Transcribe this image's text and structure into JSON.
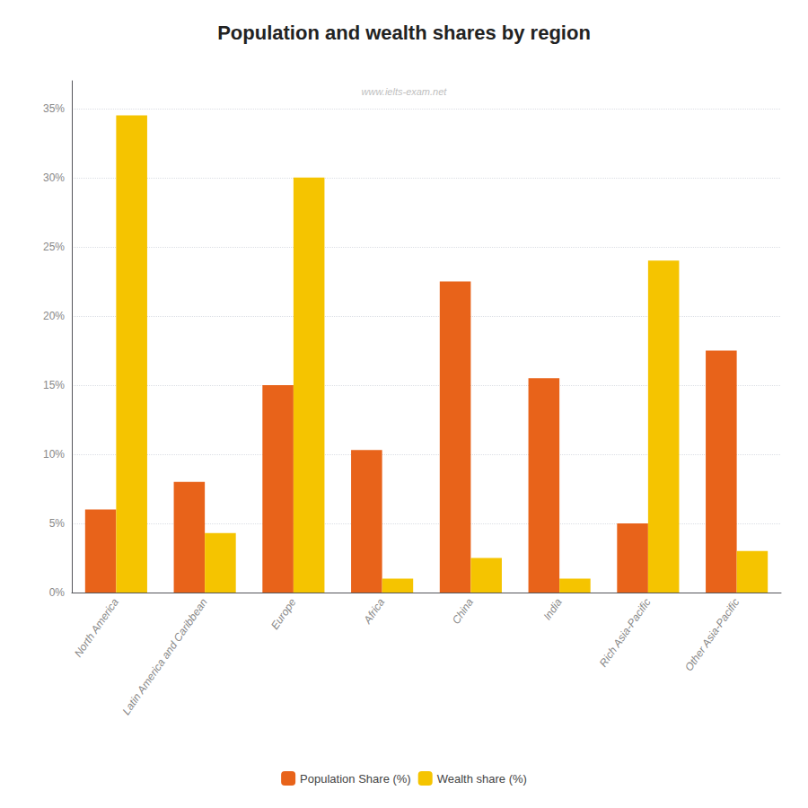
{
  "chart_data": {
    "type": "bar",
    "title": "Population and wealth shares by region",
    "annotations": [
      "www.ielts-exam.net"
    ],
    "categories": [
      "North America",
      "Latin America and Caribbean",
      "Europe",
      "Africa",
      "China",
      "India",
      "Rich Asia-Pacific",
      "Other Asia-Pacific"
    ],
    "series": [
      {
        "name": "Population Share (%)",
        "color": "#E8631A",
        "values": [
          6,
          8,
          15,
          10.3,
          22.5,
          15.5,
          5,
          17.5
        ]
      },
      {
        "name": "Wealth share (%)",
        "color": "#F5C400",
        "values": [
          34.5,
          4.3,
          30,
          1,
          2.5,
          1,
          24,
          3
        ]
      }
    ],
    "ylim": [
      0,
      37
    ],
    "yticks": [
      {
        "value": 0,
        "label": "0%"
      },
      {
        "value": 5,
        "label": "5%"
      },
      {
        "value": 10,
        "label": "10%"
      },
      {
        "value": 15,
        "label": "15%"
      },
      {
        "value": 20,
        "label": "20%"
      },
      {
        "value": 25,
        "label": "25%"
      },
      {
        "value": 30,
        "label": "30%"
      },
      {
        "value": 35,
        "label": "35%"
      }
    ],
    "grid": true,
    "legend": "bottom"
  }
}
